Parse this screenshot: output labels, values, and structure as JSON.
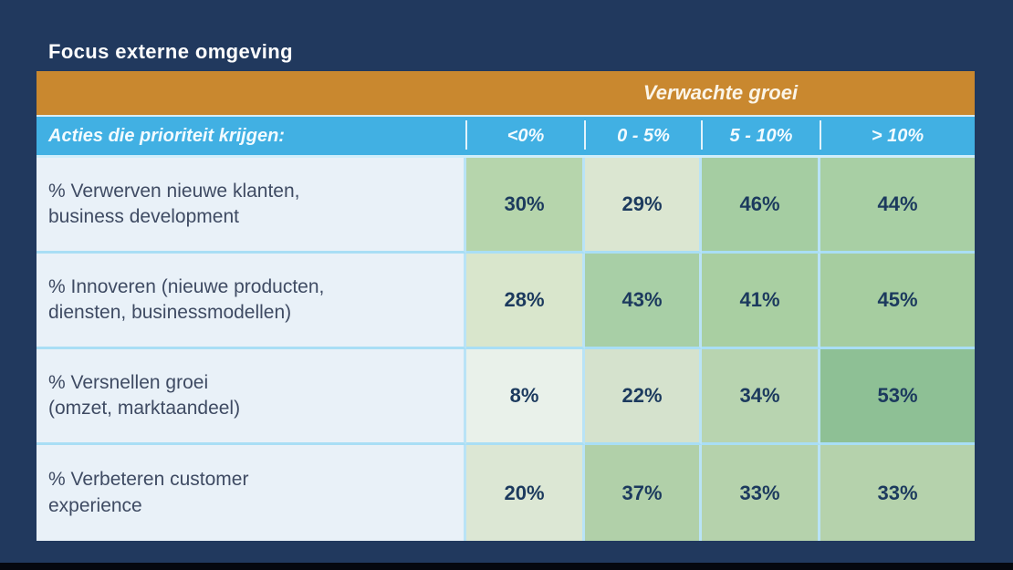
{
  "title": "Focus externe omgeving",
  "table": {
    "group_header": "Verwachte groei",
    "row_header": "Acties die prioriteit krijgen:",
    "columns": [
      "<0%",
      "0 - 5%",
      "5 - 10%",
      "> 10%"
    ],
    "rows": [
      {
        "label": "% Verwerven nieuwe klanten,\nbusiness development",
        "values": [
          "30%",
          "29%",
          "46%",
          "44%"
        ],
        "cell_colors": [
          "#b6d5ac",
          "#dbe6d1",
          "#a5cda2",
          "#a8cfa4"
        ]
      },
      {
        "label": "% Innoveren (nieuwe producten,\ndiensten, businessmodellen)",
        "values": [
          "28%",
          "43%",
          "41%",
          "45%"
        ],
        "cell_colors": [
          "#d9e6cc",
          "#a8cfa6",
          "#a9cfa2",
          "#a6cda0"
        ]
      },
      {
        "label": "% Versnellen groei\n(omzet, marktaandeel)",
        "values": [
          "8%",
          "22%",
          "34%",
          "53%"
        ],
        "cell_colors": [
          "#e9f1ea",
          "#d5e2cd",
          "#b8d4b0",
          "#8ec095"
        ]
      },
      {
        "label": "% Verbeteren customer\nexperience",
        "values": [
          "20%",
          "37%",
          "33%",
          "33%"
        ],
        "cell_colors": [
          "#dce7d4",
          "#b1d0a9",
          "#b5d2ac",
          "#b5d2ac"
        ]
      }
    ]
  },
  "colors": {
    "background": "#21395e",
    "footer_bar": "#05080f",
    "header_orange": "#c9882f",
    "header_blue": "#41b0e3",
    "label_cell_bg": "#e9f1f8",
    "grid_line": "#b3e1f6",
    "label_text": "#3f4b63",
    "value_text": "#1c3a5e",
    "header_text": "#ffffff"
  },
  "chart_data": {
    "type": "heatmap",
    "title": "Focus externe omgeving",
    "column_group_label": "Verwachte groei",
    "row_axis_label": "Acties die prioriteit krijgen:",
    "columns": [
      "<0%",
      "0 - 5%",
      "5 - 10%",
      "> 10%"
    ],
    "rows": [
      "% Verwerven nieuwe klanten, business development",
      "% Innoveren (nieuwe producten, diensten, businessmodellen)",
      "% Versnellen groei (omzet, marktaandeel)",
      "% Verbeteren customer experience"
    ],
    "values_percent": [
      [
        30,
        29,
        46,
        44
      ],
      [
        28,
        43,
        41,
        45
      ],
      [
        8,
        22,
        34,
        53
      ],
      [
        20,
        37,
        33,
        33
      ]
    ],
    "color_encoding": "higher value = darker green cell shading"
  }
}
